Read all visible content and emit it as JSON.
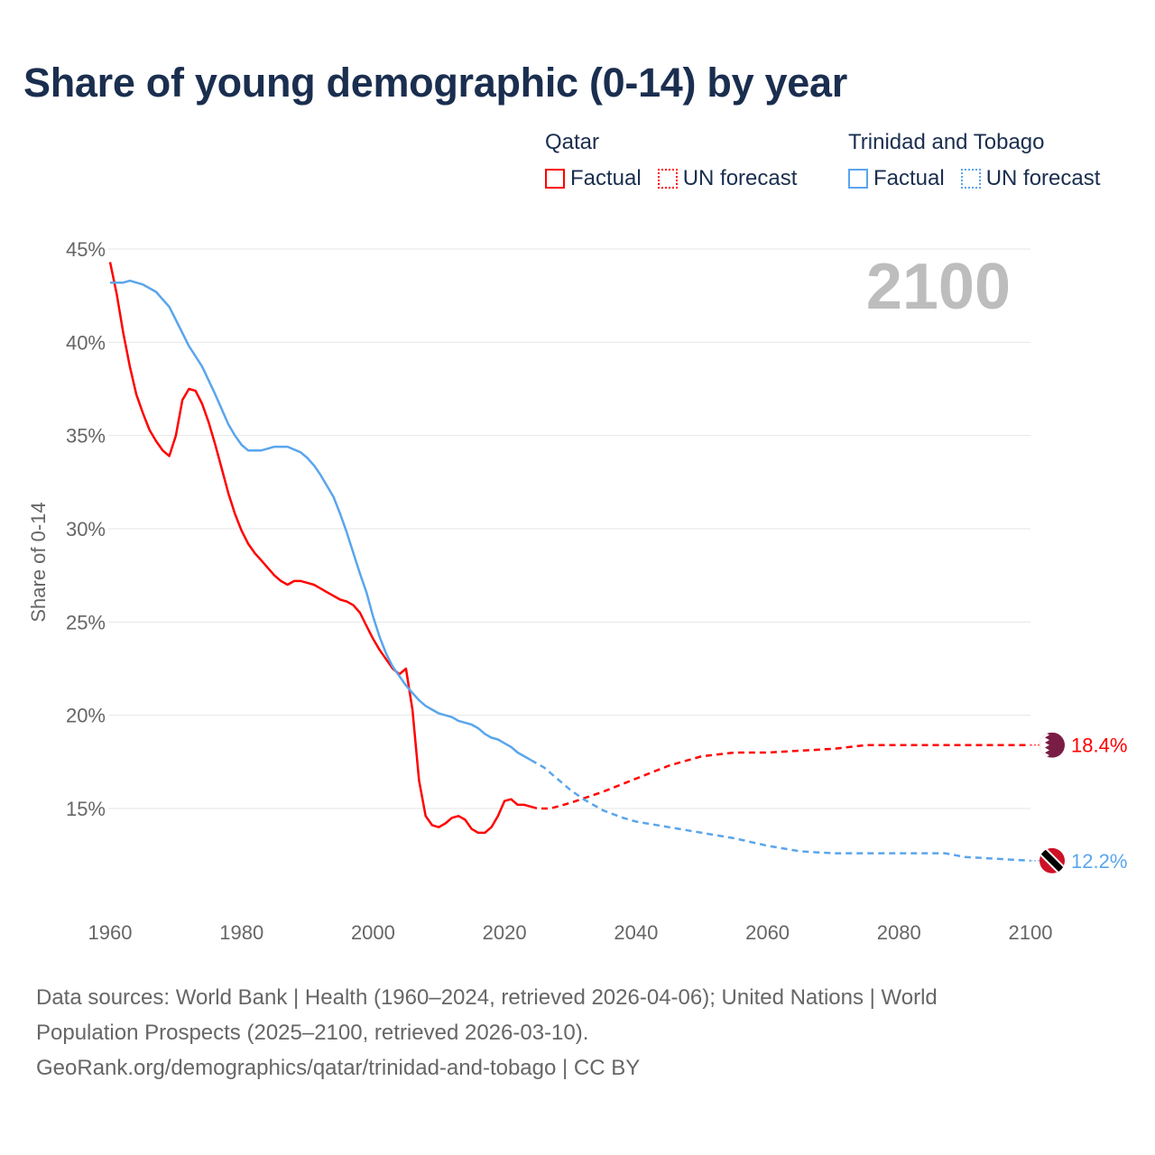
{
  "title": "Share of young demographic (0-14) by year",
  "legend": {
    "groups": [
      {
        "country": "Qatar",
        "items": [
          {
            "label": "Factual",
            "style": "solid"
          },
          {
            "label": "UN forecast",
            "style": "dotted"
          }
        ],
        "color": "#ff0000"
      },
      {
        "country": "Trinidad and Tobago",
        "items": [
          {
            "label": "Factual",
            "style": "solid"
          },
          {
            "label": "UN forecast",
            "style": "dotted"
          }
        ],
        "color": "#5aa5ec"
      }
    ]
  },
  "year_watermark": "2100",
  "footer": {
    "line1": "Data sources: World Bank | Health (1960–2024, retrieved 2026-04-06); United Nations | World",
    "line2": "Population Prospects (2025–2100, retrieved 2026-03-10).",
    "line3": "GeoRank.org/demographics/qatar/trinidad-and-tobago | CC BY"
  },
  "chart_data": {
    "type": "line",
    "title": "Share of young demographic (0-14) by year",
    "xlabel": "",
    "ylabel": "Share of 0-14",
    "xlim": [
      1960,
      2100
    ],
    "ylim": [
      10,
      45
    ],
    "x_ticks": [
      "1960",
      "1980",
      "2000",
      "2020",
      "2040",
      "2060",
      "2080",
      "2100"
    ],
    "y_ticks": [
      {
        "v": 15,
        "label": "15%"
      },
      {
        "v": 20,
        "label": "20%"
      },
      {
        "v": 25,
        "label": "25%"
      },
      {
        "v": 30,
        "label": "30%"
      },
      {
        "v": 35,
        "label": "35%"
      },
      {
        "v": 40,
        "label": "40%"
      },
      {
        "v": 45,
        "label": "45%"
      }
    ],
    "grid": true,
    "series": [
      {
        "name": "Qatar",
        "color": "#ff0000",
        "end_label": "18.4%",
        "flag": "qatar-flag",
        "factual": [
          [
            1960,
            44.3
          ],
          [
            1961,
            42.6
          ],
          [
            1962,
            40.5
          ],
          [
            1963,
            38.7
          ],
          [
            1964,
            37.2
          ],
          [
            1965,
            36.2
          ],
          [
            1966,
            35.3
          ],
          [
            1967,
            34.7
          ],
          [
            1968,
            34.2
          ],
          [
            1969,
            33.9
          ],
          [
            1970,
            35.0
          ],
          [
            1971,
            36.9
          ],
          [
            1972,
            37.5
          ],
          [
            1973,
            37.4
          ],
          [
            1974,
            36.7
          ],
          [
            1975,
            35.7
          ],
          [
            1976,
            34.5
          ],
          [
            1977,
            33.2
          ],
          [
            1978,
            31.9
          ],
          [
            1979,
            30.8
          ],
          [
            1980,
            29.9
          ],
          [
            1981,
            29.2
          ],
          [
            1982,
            28.7
          ],
          [
            1983,
            28.3
          ],
          [
            1984,
            27.9
          ],
          [
            1985,
            27.5
          ],
          [
            1986,
            27.2
          ],
          [
            1987,
            27.0
          ],
          [
            1988,
            27.2
          ],
          [
            1989,
            27.2
          ],
          [
            1990,
            27.1
          ],
          [
            1991,
            27.0
          ],
          [
            1992,
            26.8
          ],
          [
            1993,
            26.6
          ],
          [
            1994,
            26.4
          ],
          [
            1995,
            26.2
          ],
          [
            1996,
            26.1
          ],
          [
            1997,
            25.9
          ],
          [
            1998,
            25.5
          ],
          [
            1999,
            24.8
          ],
          [
            2000,
            24.1
          ],
          [
            2001,
            23.5
          ],
          [
            2002,
            23.0
          ],
          [
            2003,
            22.5
          ],
          [
            2004,
            22.2
          ],
          [
            2005,
            22.5
          ],
          [
            2006,
            20.3
          ],
          [
            2007,
            16.5
          ],
          [
            2008,
            14.6
          ],
          [
            2009,
            14.1
          ],
          [
            2010,
            14.0
          ],
          [
            2011,
            14.2
          ],
          [
            2012,
            14.5
          ],
          [
            2013,
            14.6
          ],
          [
            2014,
            14.4
          ],
          [
            2015,
            13.9
          ],
          [
            2016,
            13.7
          ],
          [
            2017,
            13.7
          ],
          [
            2018,
            14.0
          ],
          [
            2019,
            14.6
          ],
          [
            2020,
            15.4
          ],
          [
            2021,
            15.5
          ],
          [
            2022,
            15.2
          ],
          [
            2023,
            15.2
          ],
          [
            2024,
            15.1
          ]
        ],
        "forecast": [
          [
            2024,
            15.1
          ],
          [
            2025,
            15.0
          ],
          [
            2027,
            15.0
          ],
          [
            2030,
            15.3
          ],
          [
            2035,
            15.9
          ],
          [
            2040,
            16.6
          ],
          [
            2045,
            17.3
          ],
          [
            2050,
            17.8
          ],
          [
            2055,
            18.0
          ],
          [
            2060,
            18.0
          ],
          [
            2065,
            18.1
          ],
          [
            2070,
            18.2
          ],
          [
            2075,
            18.4
          ],
          [
            2080,
            18.4
          ],
          [
            2090,
            18.4
          ],
          [
            2100,
            18.4
          ]
        ]
      },
      {
        "name": "Trinidad and Tobago",
        "color": "#5aa5ec",
        "end_label": "12.2%",
        "flag": "trinidad-and-tobago-flag",
        "factual": [
          [
            1960,
            43.2
          ],
          [
            1962,
            43.2
          ],
          [
            1963,
            43.3
          ],
          [
            1965,
            43.1
          ],
          [
            1967,
            42.7
          ],
          [
            1969,
            41.9
          ],
          [
            1970,
            41.2
          ],
          [
            1972,
            39.8
          ],
          [
            1974,
            38.7
          ],
          [
            1976,
            37.2
          ],
          [
            1978,
            35.6
          ],
          [
            1979,
            35.0
          ],
          [
            1980,
            34.5
          ],
          [
            1981,
            34.2
          ],
          [
            1983,
            34.2
          ],
          [
            1985,
            34.4
          ],
          [
            1987,
            34.4
          ],
          [
            1989,
            34.1
          ],
          [
            1990,
            33.8
          ],
          [
            1991,
            33.4
          ],
          [
            1992,
            32.9
          ],
          [
            1994,
            31.7
          ],
          [
            1995,
            30.8
          ],
          [
            1996,
            29.8
          ],
          [
            1998,
            27.6
          ],
          [
            1999,
            26.6
          ],
          [
            2000,
            25.3
          ],
          [
            2001,
            24.2
          ],
          [
            2002,
            23.3
          ],
          [
            2003,
            22.6
          ],
          [
            2004,
            22.1
          ],
          [
            2005,
            21.6
          ],
          [
            2006,
            21.2
          ],
          [
            2007,
            20.8
          ],
          [
            2008,
            20.5
          ],
          [
            2009,
            20.3
          ],
          [
            2010,
            20.1
          ],
          [
            2011,
            20.0
          ],
          [
            2012,
            19.9
          ],
          [
            2013,
            19.7
          ],
          [
            2014,
            19.6
          ],
          [
            2015,
            19.5
          ],
          [
            2016,
            19.3
          ],
          [
            2017,
            19.0
          ],
          [
            2018,
            18.8
          ],
          [
            2019,
            18.7
          ],
          [
            2020,
            18.5
          ],
          [
            2021,
            18.3
          ],
          [
            2022,
            18.0
          ],
          [
            2023,
            17.8
          ],
          [
            2024,
            17.6
          ]
        ],
        "forecast": [
          [
            2024,
            17.6
          ],
          [
            2026,
            17.2
          ],
          [
            2028,
            16.6
          ],
          [
            2030,
            16.0
          ],
          [
            2032,
            15.5
          ],
          [
            2035,
            14.9
          ],
          [
            2038,
            14.5
          ],
          [
            2040,
            14.3
          ],
          [
            2045,
            14.0
          ],
          [
            2050,
            13.7
          ],
          [
            2055,
            13.4
          ],
          [
            2060,
            13.0
          ],
          [
            2065,
            12.7
          ],
          [
            2070,
            12.6
          ],
          [
            2080,
            12.6
          ],
          [
            2087,
            12.6
          ],
          [
            2090,
            12.4
          ],
          [
            2095,
            12.3
          ],
          [
            2100,
            12.2
          ]
        ]
      }
    ]
  }
}
